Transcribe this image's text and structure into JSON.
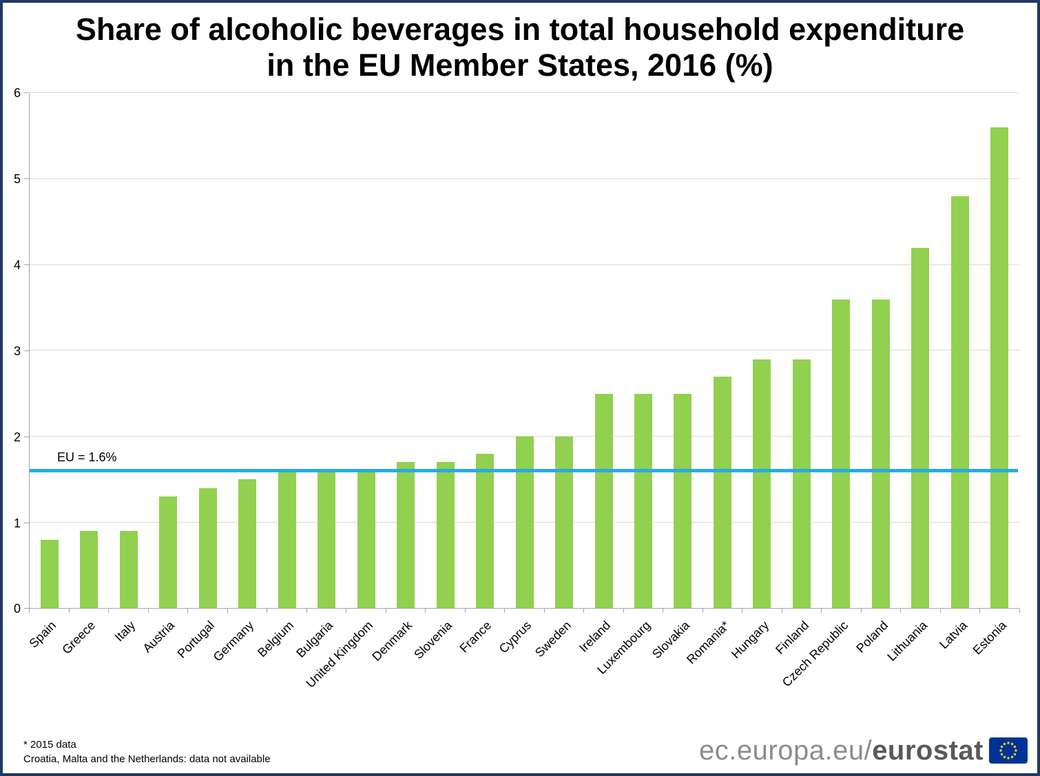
{
  "title_lines": [
    "Share of alcoholic beverages in total household expenditure",
    "in the EU Member States, 2016 (%)"
  ],
  "footnotes": [
    "* 2015 data",
    "Croatia, Malta and the Netherlands: data not available"
  ],
  "logo": {
    "prefix": "ec.europa.eu/",
    "bold": "eurostat"
  },
  "colors": {
    "bar": "#92D050",
    "eu_line": "#29ABE2",
    "grid": "#D9D9D9",
    "axis": "#A6A6A6",
    "frame": "#1F3864"
  },
  "chart_data": {
    "type": "bar",
    "title": "Share of alcoholic beverages in total household expenditure in the EU Member States, 2016 (%)",
    "categories": [
      "Spain",
      "Greece",
      "Italy",
      "Austria",
      "Portugal",
      "Germany",
      "Belgium",
      "Bulgaria",
      "United Kingdom",
      "Denmark",
      "Slovenia",
      "France",
      "Cyprus",
      "Sweden",
      "Ireland",
      "Luxembourg",
      "Slovakia",
      "Romania*",
      "Hungary",
      "Finland",
      "Czech Republic",
      "Poland",
      "Lithuania",
      "Latvia",
      "Estonia"
    ],
    "values": [
      0.8,
      0.9,
      0.9,
      1.3,
      1.4,
      1.5,
      1.6,
      1.6,
      1.6,
      1.7,
      1.7,
      1.8,
      2.0,
      2.0,
      2.5,
      2.5,
      2.5,
      2.7,
      2.9,
      2.9,
      3.6,
      3.6,
      4.2,
      4.8,
      5.6
    ],
    "xlabel": "",
    "ylabel": "",
    "ylim": [
      0,
      6
    ],
    "yticks": [
      0,
      1,
      2,
      3,
      4,
      5,
      6
    ],
    "grid": true,
    "legend": "none",
    "reference_line": {
      "label": "EU = 1.6%",
      "value": 1.6
    }
  }
}
